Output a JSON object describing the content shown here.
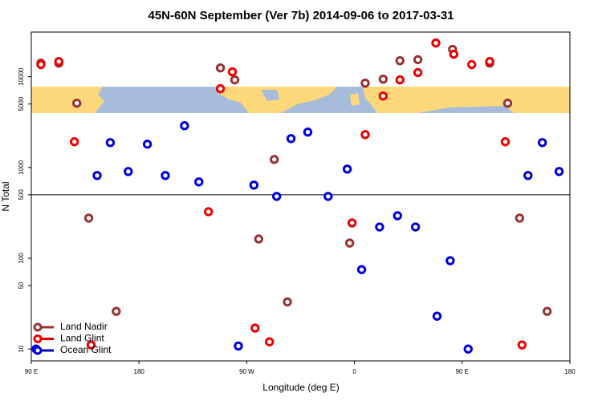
{
  "chart_data": {
    "type": "scatter",
    "title": "45N-60N September (Ver 7b)   2014-09-06 to 2017-03-31",
    "xlabel": "Longitude (deg E)",
    "ylabel": "N Total",
    "xlim": [
      90,
      540
    ],
    "ylim": [
      7.4,
      31000
    ],
    "log_y": true,
    "xticks": [
      {
        "value": 90,
        "label": "90 E"
      },
      180,
      {
        "value": 270,
        "label": "90 W"
      },
      {
        "value": 360,
        "label": "0"
      },
      {
        "value": 450,
        "label": "90 E"
      },
      {
        "value": 540,
        "label": "180"
      }
    ],
    "yticks": [
      10,
      50,
      100,
      500,
      1000,
      5000,
      10000
    ],
    "hline": 500,
    "legend": "bottom-left",
    "series": [
      {
        "name": "Land Nadir",
        "color": "#993333",
        "x": [
          98,
          113,
          128,
          138,
          161,
          248,
          260,
          280,
          293,
          304,
          356,
          369,
          384,
          398,
          413,
          442,
          473,
          488,
          498,
          521
        ],
        "values": [
          14100,
          14100,
          5100,
          277,
          26,
          12500,
          9220,
          163,
          1225,
          33,
          147,
          8490,
          9400,
          15000,
          15400,
          20000,
          14100,
          5100,
          277,
          26
        ]
      },
      {
        "name": "Land Glint",
        "color": "#ee0000",
        "x": [
          98,
          113,
          126,
          140,
          238,
          248,
          258,
          277,
          289,
          358,
          369,
          384,
          398,
          413,
          428,
          443,
          458,
          473,
          486,
          500
        ],
        "values": [
          13600,
          14700,
          1920,
          11.1,
          326,
          7370,
          11300,
          17,
          12,
          245,
          2300,
          6130,
          9220,
          11100,
          23500,
          17700,
          13600,
          14700,
          1920,
          11.1
        ]
      },
      {
        "name": "Ocean Glint",
        "color": "#0000dd",
        "x": [
          94,
          145,
          156,
          171,
          187,
          202,
          218,
          230,
          263,
          276,
          295,
          307,
          321,
          338,
          354,
          366,
          381,
          396,
          411,
          429,
          440,
          455,
          505,
          517,
          531
        ],
        "values": [
          10,
          816,
          1880,
          903,
          1805,
          816,
          2885,
          693,
          10.8,
          639,
          480,
          2080,
          2450,
          480,
          960,
          75,
          221,
          294,
          221,
          23,
          94,
          10,
          816,
          1880,
          903
        ]
      }
    ]
  }
}
